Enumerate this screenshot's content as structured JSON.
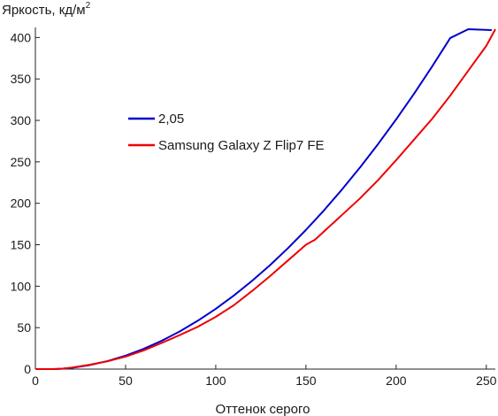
{
  "chart_data": {
    "type": "line",
    "title": "",
    "ylabel": "Яркость, кд/м",
    "ylabel_superscript": "2",
    "xlabel": "Оттенок серого",
    "xlim": [
      0,
      255
    ],
    "ylim": [
      0,
      410
    ],
    "xticks": [
      "0",
      "50",
      "100",
      "150",
      "200",
      "250"
    ],
    "yticks": [
      "0",
      "50",
      "100",
      "150",
      "200",
      "250",
      "300",
      "350",
      "400"
    ],
    "grid": false,
    "legend_placement": "upper-left-center",
    "series": [
      {
        "name": "2,05",
        "color": "#0000cc",
        "x": [
          0,
          10,
          15,
          20,
          30,
          40,
          50,
          60,
          70,
          80,
          90,
          100,
          110,
          120,
          130,
          140,
          150,
          160,
          170,
          180,
          190,
          200,
          210,
          220,
          230,
          240,
          253
        ],
        "y": [
          0,
          0,
          0.4,
          1.5,
          4.8,
          9.7,
          16.2,
          24.4,
          34.1,
          45.4,
          58.3,
          72.7,
          88.7,
          106.2,
          125.2,
          145.8,
          167.9,
          191.5,
          216.7,
          243.3,
          271.5,
          301.2,
          332.4,
          365.2,
          399.4,
          435.2,
          409
        ]
      },
      {
        "name": "Samsung Galaxy Z Flip7 FE",
        "color": "#ee0000",
        "x": [
          0,
          10,
          15,
          20,
          30,
          40,
          50,
          60,
          70,
          80,
          90,
          100,
          110,
          120,
          130,
          140,
          150,
          155,
          160,
          165,
          170,
          180,
          190,
          200,
          210,
          220,
          230,
          240,
          250,
          255
        ],
        "y": [
          0,
          0,
          0.5,
          1.8,
          5.2,
          9.5,
          15.0,
          22.5,
          31.5,
          41.0,
          51.0,
          63.0,
          77.0,
          94.0,
          112.0,
          131.0,
          150.0,
          156.0,
          166.0,
          176.0,
          186.0,
          206.0,
          228.0,
          252.0,
          277.0,
          302.0,
          330.0,
          360.0,
          390.0,
          410.0
        ]
      }
    ]
  }
}
